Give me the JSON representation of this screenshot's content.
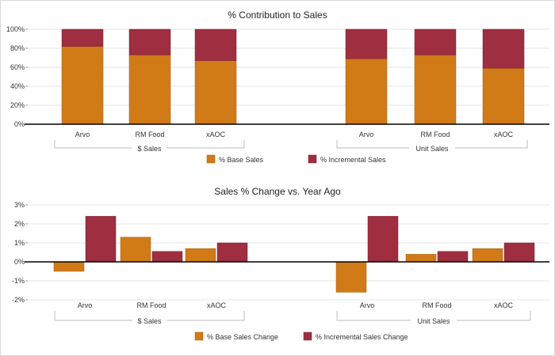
{
  "colors": {
    "base": "#D07A18",
    "incremental": "#9E2E40",
    "baseStroke": "#A85E0E",
    "incrementalStroke": "#7A2030",
    "grid": "#e6e6e6",
    "axis": "#000000",
    "bracket": "#bdbdbd"
  },
  "chart_data": [
    {
      "type": "bar",
      "stacked": true,
      "title": "% Contribution to Sales",
      "categories": [
        "Arvo",
        "RM Food",
        "xAOC",
        "Arvo",
        "RM Food",
        "xAOC"
      ],
      "groups": [
        {
          "label": "$ Sales",
          "categories": [
            "Arvo",
            "RM Food",
            "xAOC"
          ]
        },
        {
          "label": "Unit Sales",
          "categories": [
            "Arvo",
            "RM Food",
            "xAOC"
          ]
        }
      ],
      "series": [
        {
          "name": "% Base Sales",
          "values": [
            82,
            73,
            67,
            69,
            73,
            59
          ]
        },
        {
          "name": "% Incremental Sales",
          "values": [
            18,
            27,
            33,
            31,
            27,
            41
          ]
        }
      ],
      "ylim": [
        0,
        100
      ],
      "yticks": [
        "0%",
        "20%",
        "40%",
        "60%",
        "80%",
        "100%"
      ],
      "grid": true,
      "legend": "bottom"
    },
    {
      "type": "bar",
      "stacked": false,
      "title": "Sales % Change vs. Year Ago",
      "categories": [
        "Arvo",
        "RM Food",
        "xAOC",
        "Arvo",
        "RM Food",
        "xAOC"
      ],
      "groups": [
        {
          "label": "$ Sales",
          "categories": [
            "Arvo",
            "RM Food",
            "xAOC"
          ]
        },
        {
          "label": "Unit Sales",
          "categories": [
            "Arvo",
            "RM Food",
            "xAOC"
          ]
        }
      ],
      "series": [
        {
          "name": "% Base Sales Change",
          "values": [
            -0.5,
            1.3,
            0.7,
            -1.6,
            0.4,
            0.7
          ]
        },
        {
          "name": "% Incremental Sales Change",
          "values": [
            2.4,
            0.55,
            1.0,
            2.4,
            0.55,
            1.0
          ]
        }
      ],
      "ylim": [
        -2,
        3
      ],
      "yticks": [
        "-2%",
        "-1%",
        "0%",
        "1%",
        "2%",
        "3%"
      ],
      "grid": true,
      "legend": "bottom"
    }
  ]
}
